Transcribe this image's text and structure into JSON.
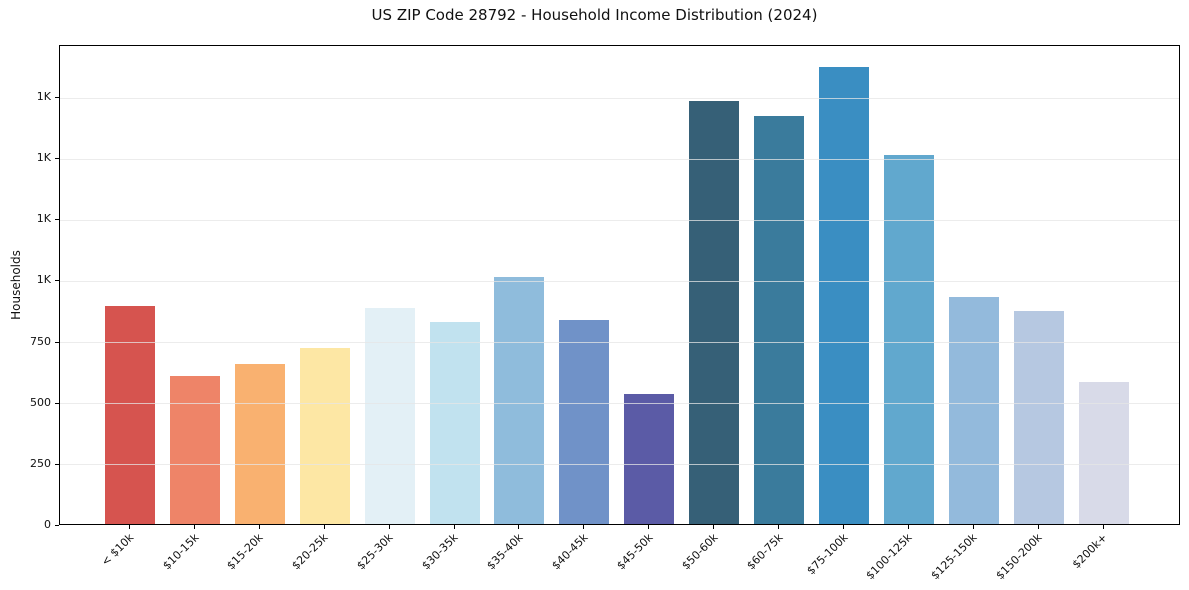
{
  "figure": {
    "title": "US ZIP Code 28792 - Household Income Distribution (2024)"
  },
  "chart_data": {
    "type": "bar",
    "title": "US ZIP Code 28792 - Household Income Distribution (2024)",
    "xlabel": "",
    "ylabel": "Households",
    "categories": [
      "< $10k",
      "$10-15k",
      "$15-20k",
      "$20-25k",
      "$25-30k",
      "$30-35k",
      "$35-40k",
      "$40-45k",
      "$45-50k",
      "$50-60k",
      "$60-75k",
      "$75-100k",
      "$100-125k",
      "$125-150k",
      "$150-200k",
      "$200k+"
    ],
    "values": [
      890,
      605,
      655,
      720,
      885,
      825,
      1010,
      835,
      530,
      1730,
      1670,
      1870,
      1510,
      930,
      870,
      580
    ],
    "bar_colors": [
      "#d6544f",
      "#ee8468",
      "#f9b170",
      "#fde7a4",
      "#e3f0f6",
      "#c1e2ef",
      "#8fbcdc",
      "#7092c8",
      "#5b5ba6",
      "#366077",
      "#3a7b9c",
      "#3a8ec2",
      "#61a8ce",
      "#93badc",
      "#b6c8e1",
      "#d8dae8"
    ],
    "ylim": [
      0,
      1963
    ],
    "yticks": [
      {
        "value": 0,
        "label": "0"
      },
      {
        "value": 250,
        "label": "250"
      },
      {
        "value": 500,
        "label": "500"
      },
      {
        "value": 750,
        "label": "750"
      },
      {
        "value": 1000,
        "label": "1K"
      },
      {
        "value": 1250,
        "label": "1K"
      },
      {
        "value": 1500,
        "label": "1K"
      },
      {
        "value": 1750,
        "label": "1K"
      }
    ],
    "grid": "horizontal",
    "legend_position": "none",
    "x_tick_label_rotation_deg": 45
  },
  "colors": {
    "background": "#ffffff",
    "axis": "#000000",
    "gridline": "#e5e5e5",
    "text": "#111111"
  }
}
